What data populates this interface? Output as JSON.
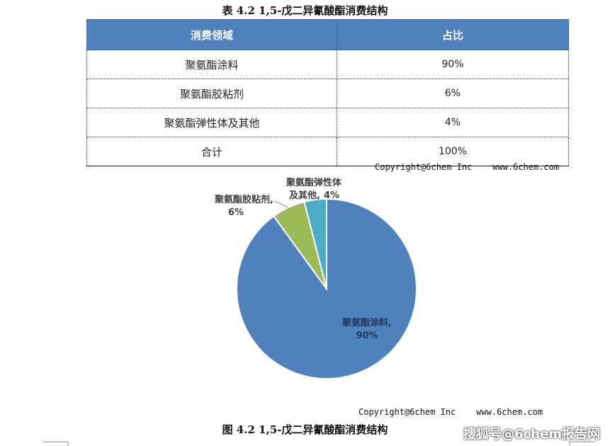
{
  "table_title": "表 4.2 1,5-戊二异氰酸酯消费结构",
  "table": {
    "headers": [
      "消费领域",
      "占比"
    ],
    "rows": [
      {
        "field": "聚氨酯涂料",
        "share": "90%"
      },
      {
        "field": "聚氨酯胶粘剂",
        "share": "6%"
      },
      {
        "field": "聚氨酯弹性体及其他",
        "share": "4%"
      },
      {
        "field": "合计",
        "share": "100%"
      }
    ]
  },
  "copyright_table": "Copyright@6chem Inc    www.6chem.com",
  "copyright_chart": "Copyright@6chem Inc    www.6chem.com",
  "figure_title": "图 4.2 1,5-戊二异氰酸酯消费结构",
  "watermark": "搜狐号@6chem报告网",
  "colors": {
    "header_bg": "#4f81bd",
    "slice_coating": "#4f81bd",
    "slice_adhesive": "#9bbb59",
    "slice_elastomer": "#4bacc6"
  },
  "chart_data": {
    "type": "pie",
    "title": "",
    "slices": [
      {
        "label": "聚氨酯涂料,",
        "percent_label": "90%",
        "value": 90,
        "color": "#4f81bd"
      },
      {
        "label": "聚氨酯胶粘剂,",
        "percent_label": "6%",
        "value": 6,
        "color": "#9bbb59"
      },
      {
        "label_lines": [
          "聚氨酯弹性体",
          "及其他,"
        ],
        "percent_label": "4%",
        "value": 4,
        "color": "#4bacc6"
      }
    ],
    "start": "12 o'clock",
    "direction": "clockwise",
    "legend": "none"
  }
}
